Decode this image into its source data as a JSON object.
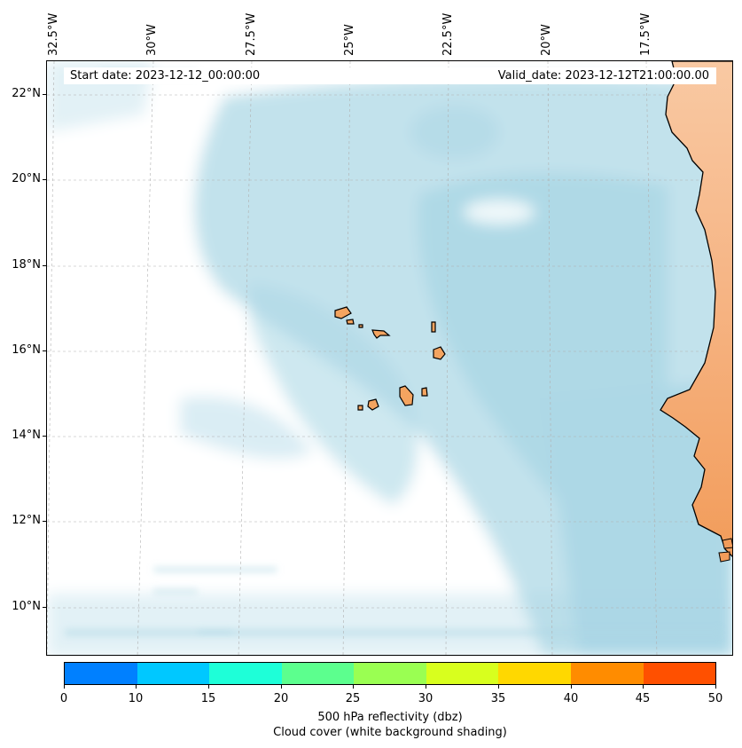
{
  "map": {
    "longitude_labels": [
      "32.5°W",
      "30°W",
      "27.5°W",
      "25°W",
      "22.5°W",
      "20°W",
      "17.5°W"
    ],
    "latitude_labels": [
      "22°N",
      "20°N",
      "18°N",
      "16°N",
      "14°N",
      "12°N",
      "10°N"
    ],
    "start_date_text": "Start date: 2023-12-12_00:00:00",
    "valid_date_text": "Valid_date: 2023-12-12T21:00:00.00",
    "colors": {
      "ocean_cloud": "#add8e6",
      "land_fill": "#f4a460",
      "coastline": "#000000",
      "gridline": "#b0b0b0"
    }
  },
  "colorbar": {
    "ticks": [
      "0",
      "10",
      "15",
      "20",
      "25",
      "30",
      "35",
      "40",
      "45",
      "50"
    ],
    "colors": [
      "#0080ff",
      "#00c8ff",
      "#1effd8",
      "#5cff8e",
      "#9aff52",
      "#d8ff1e",
      "#ffd800",
      "#ff8c00",
      "#ff5000"
    ],
    "label_line1": "500 hPa reflectivity (dbz)",
    "label_line2": "Cloud cover (white background shading)"
  }
}
